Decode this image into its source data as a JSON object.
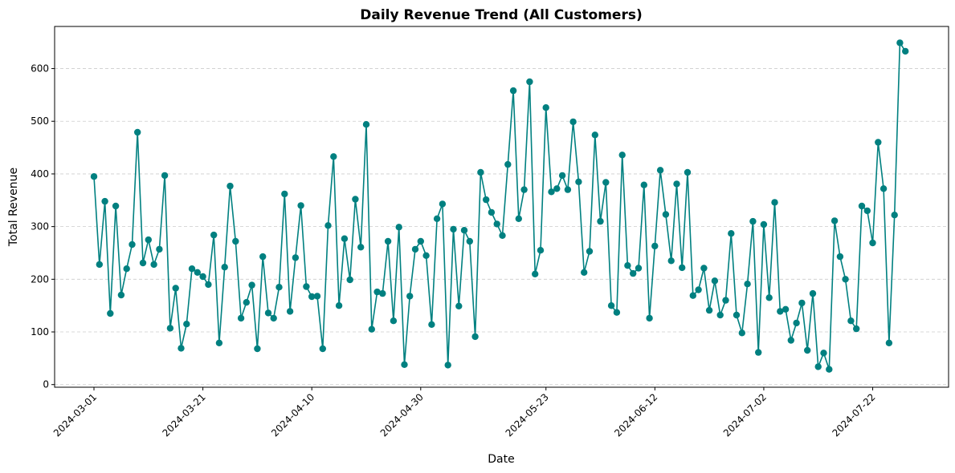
{
  "chart_data": {
    "type": "line",
    "title": "Daily Revenue Trend (All Customers)",
    "xlabel": "Date",
    "ylabel": "Total Revenue",
    "color": "#008080",
    "grid": "y-dashed",
    "x_start": "2024-03-01",
    "ylim": [
      -5,
      680
    ],
    "yticks": [
      0,
      100,
      200,
      300,
      400,
      500,
      600
    ],
    "xticks": [
      "2024-03-01",
      "2024-03-21",
      "2024-04-10",
      "2024-04-30",
      "2024-05-23",
      "2024-06-12",
      "2024-07-02",
      "2024-07-22"
    ],
    "series": [
      {
        "values": [
          395,
          228,
          348,
          135,
          339,
          170,
          220,
          266,
          479,
          231,
          275,
          228,
          257,
          397,
          107,
          183,
          69,
          115,
          220,
          213,
          205,
          190,
          284,
          79,
          223,
          377,
          272,
          126,
          156,
          189,
          68,
          243,
          136,
          126,
          185,
          362,
          139,
          241,
          340,
          186,
          167,
          168,
          68,
          302,
          433,
          150,
          277,
          199,
          352,
          261,
          494,
          105,
          176,
          173,
          272,
          121,
          299,
          38,
          168,
          257,
          272,
          245,
          114,
          315,
          343,
          37,
          295,
          149,
          293,
          272,
          91,
          403,
          351,
          327,
          305,
          283,
          418,
          558,
          315,
          370,
          575,
          210,
          255,
          526,
          366,
          372,
          397,
          370,
          499,
          385,
          213,
          253,
          474,
          310,
          384,
          150,
          137,
          436,
          226,
          211,
          221,
          379,
          126,
          263,
          407,
          323,
          235,
          381,
          222,
          403,
          169,
          180,
          221,
          141,
          197,
          132,
          160,
          287,
          132,
          98,
          191,
          310,
          61,
          304,
          165,
          346,
          139,
          143,
          84,
          117,
          155,
          65,
          173,
          34,
          60,
          29,
          311,
          243,
          200,
          121,
          106,
          339,
          330,
          269,
          460,
          372,
          79,
          322,
          649,
          633
        ]
      }
    ]
  }
}
